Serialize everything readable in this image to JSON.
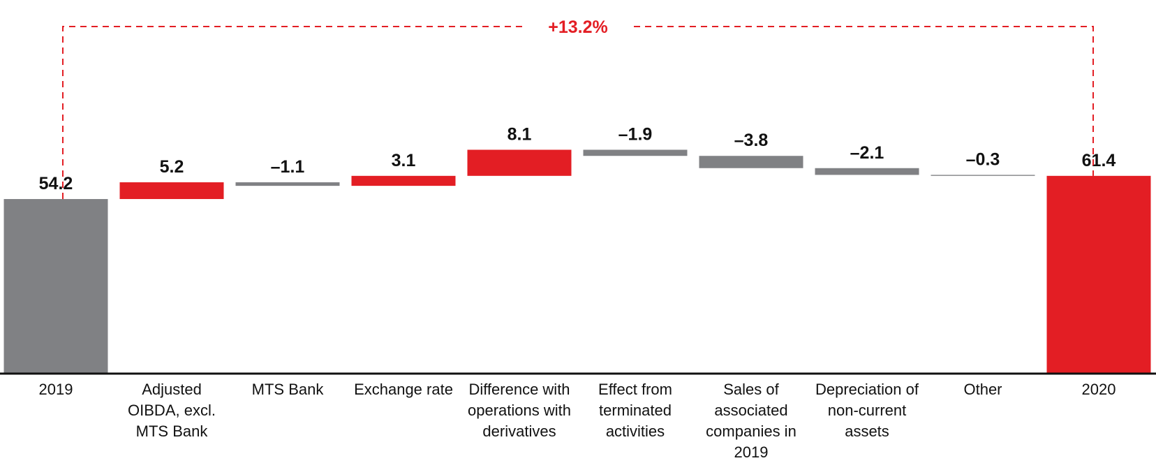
{
  "chart_data": {
    "type": "waterfall",
    "categories": [
      "2019",
      "Adjusted OIBDA, excl. MTS Bank",
      "MTS Bank",
      "Exchange rate",
      "Difference with operations with derivatives",
      "Effect from terminated activities",
      "Sales of associated companies in 2019",
      "Depreciation of non-current assets",
      "Other",
      "2020"
    ],
    "values": [
      54.2,
      5.2,
      -1.1,
      3.1,
      8.1,
      -1.9,
      -3.8,
      -2.1,
      -0.3,
      61.4
    ],
    "value_labels": [
      "54.2",
      "5.2",
      "–1.1",
      "3.1",
      "8.1",
      "–1.9",
      "–3.8",
      "–2.1",
      "–0.3",
      "61.4"
    ],
    "totals": [
      0,
      9
    ],
    "colors": [
      "#808184",
      "#e31e24",
      "#808184",
      "#e31e24",
      "#e31e24",
      "#808184",
      "#808184",
      "#808184",
      "#808184",
      "#e31e24"
    ],
    "annotation": "+13.2%",
    "ylim": [
      0,
      116
    ]
  }
}
